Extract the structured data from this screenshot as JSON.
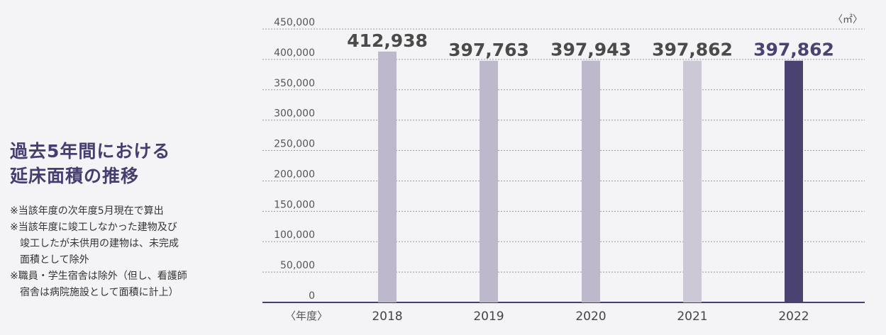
{
  "heading": {
    "line1": "過去5年間における",
    "line2": "延床面積の推移"
  },
  "notes": [
    {
      "line1": "※当該年度の次年度5月現在で算出"
    },
    {
      "line1": "※当該年度に竣工しなかった建物及び",
      "line2": "竣工したが未供用の建物は、未完成",
      "line3": "面積として除外"
    },
    {
      "line1": "※職員・学生宿舎は除外（但し、看護師",
      "line2": "宿舎は病院施設として面積に計上）"
    }
  ],
  "chart_data": {
    "type": "bar",
    "title": "",
    "xlabel": "〈年度〉",
    "ylabel": "",
    "unit_label": "〈㎡〉",
    "categories": [
      "2018",
      "2019",
      "2020",
      "2021",
      "2022"
    ],
    "values": [
      412938,
      397763,
      397943,
      397862,
      397862
    ],
    "value_labels": [
      "412,938",
      "397,763",
      "397,943",
      "397,862",
      "397,862"
    ],
    "ylim": [
      0,
      450000
    ],
    "yticks": [
      0,
      50000,
      100000,
      150000,
      200000,
      250000,
      300000,
      350000,
      400000,
      450000
    ],
    "ytick_labels": [
      "0",
      "50,000",
      "100,000",
      "150,000",
      "200,000",
      "250,000",
      "300,000",
      "350,000",
      "400,000",
      "450,000"
    ],
    "grid": true,
    "colors": {
      "bars": [
        "#bdb8cb",
        "#bdb8cb",
        "#bdb8cb",
        "#ccc8d6",
        "#4a4270"
      ],
      "labels": [
        "#4a4a4a",
        "#4a4a4a",
        "#4a4a4a",
        "#4a4a4a",
        "#4a4270"
      ],
      "axis": "#463e6e",
      "grid": "#9a9a9a",
      "tick_text": "#555555"
    }
  }
}
